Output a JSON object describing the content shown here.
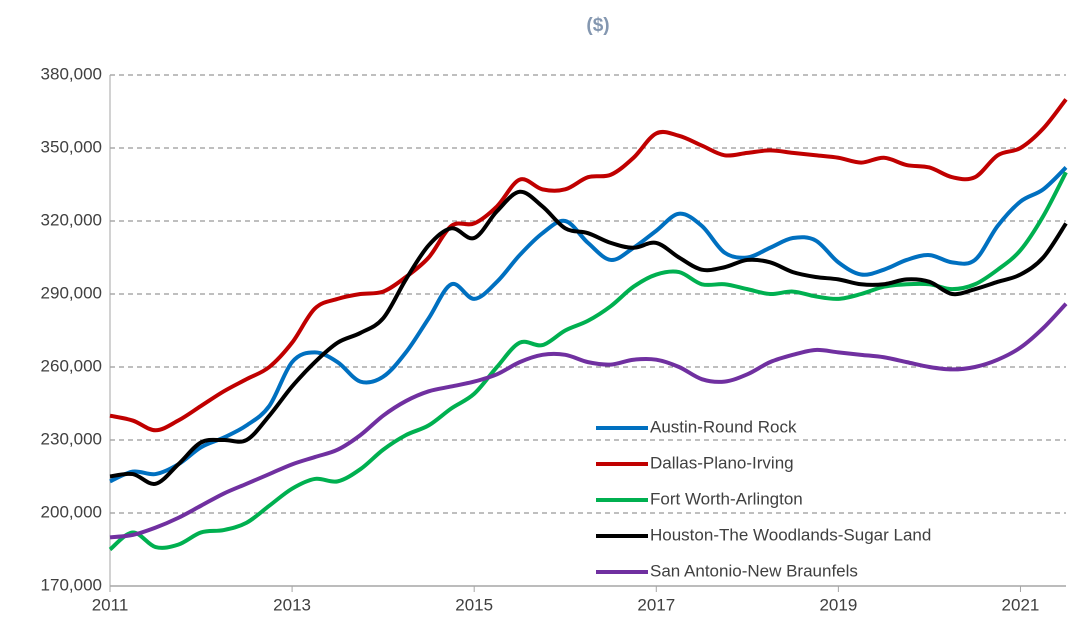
{
  "chart_data": {
    "type": "line",
    "title": "($)",
    "x": [
      2011,
      2011.25,
      2011.5,
      2011.75,
      2012,
      2012.25,
      2012.5,
      2012.75,
      2013,
      2013.25,
      2013.5,
      2013.75,
      2014,
      2014.25,
      2014.5,
      2014.75,
      2015,
      2015.25,
      2015.5,
      2015.75,
      2016,
      2016.25,
      2016.5,
      2016.75,
      2017,
      2017.25,
      2017.5,
      2017.75,
      2018,
      2018.25,
      2018.5,
      2018.75,
      2019,
      2019.25,
      2019.5,
      2019.75,
      2020,
      2020.25,
      2020.5,
      2020.75,
      2021,
      2021.25,
      2021.5
    ],
    "series": [
      {
        "name": "Austin-Round Rock",
        "color": "#0070c0",
        "values": [
          213000,
          217000,
          216000,
          220000,
          227000,
          231000,
          236000,
          244000,
          262000,
          266000,
          262000,
          254000,
          256000,
          266000,
          280000,
          294000,
          288000,
          295000,
          306000,
          315000,
          320000,
          311000,
          304000,
          309000,
          316000,
          323000,
          318000,
          307000,
          305000,
          309000,
          313000,
          312000,
          303000,
          298000,
          300000,
          304000,
          306000,
          303000,
          304000,
          318000,
          328000,
          333000,
          342000
        ]
      },
      {
        "name": "Dallas-Plano-Irving",
        "color": "#c00000",
        "values": [
          240000,
          238000,
          234000,
          238000,
          244000,
          250000,
          255000,
          260000,
          270000,
          284000,
          288000,
          290000,
          291000,
          297000,
          305000,
          318000,
          319000,
          326000,
          337000,
          333000,
          333000,
          338000,
          339000,
          346000,
          356000,
          355000,
          351000,
          347000,
          348000,
          349000,
          348000,
          347000,
          346000,
          344000,
          346000,
          343000,
          342000,
          338000,
          338000,
          347000,
          350000,
          358000,
          370000
        ]
      },
      {
        "name": "Fort Worth-Arlington",
        "color": "#00b050",
        "values": [
          185000,
          192000,
          186000,
          187000,
          192000,
          193000,
          196000,
          203000,
          210000,
          214000,
          213000,
          218000,
          226000,
          232000,
          236000,
          243000,
          249000,
          260000,
          270000,
          269000,
          275000,
          279000,
          285000,
          293000,
          298000,
          299000,
          294000,
          294000,
          292000,
          290000,
          291000,
          289000,
          288000,
          290000,
          293000,
          294000,
          294000,
          292000,
          294000,
          300000,
          308000,
          322000,
          340000
        ]
      },
      {
        "name": "Houston-The Woodlands-Sugar Land",
        "color": "#000000",
        "values": [
          215000,
          216000,
          212000,
          220000,
          229000,
          230000,
          230000,
          240000,
          252000,
          262000,
          270000,
          274000,
          280000,
          296000,
          310000,
          317000,
          313000,
          324000,
          332000,
          326000,
          317000,
          315000,
          311000,
          309000,
          311000,
          305000,
          300000,
          301000,
          304000,
          303000,
          299000,
          297000,
          296000,
          294000,
          294000,
          296000,
          295000,
          290000,
          292000,
          295000,
          298000,
          305000,
          319000
        ]
      },
      {
        "name": "San Antonio-New Braunfels",
        "color": "#7030a0",
        "values": [
          190000,
          191000,
          194000,
          198000,
          203000,
          208000,
          212000,
          216000,
          220000,
          223000,
          226000,
          232000,
          240000,
          246000,
          250000,
          252000,
          254000,
          257000,
          262000,
          265000,
          265000,
          262000,
          261000,
          263000,
          263000,
          260000,
          255000,
          254000,
          257000,
          262000,
          265000,
          267000,
          266000,
          265000,
          264000,
          262000,
          260000,
          259000,
          260000,
          263000,
          268000,
          276000,
          286000
        ]
      }
    ],
    "xlim": [
      2011,
      2021.5
    ],
    "xticks": [
      2011,
      2013,
      2015,
      2017,
      2019,
      2021
    ],
    "ylim": [
      170000,
      380000
    ],
    "yticks": [
      {
        "value": 170000,
        "label": "170,000"
      },
      {
        "value": 200000,
        "label": "200,000"
      },
      {
        "value": 230000,
        "label": "230,000"
      },
      {
        "value": 260000,
        "label": "260,000"
      },
      {
        "value": 290000,
        "label": "290,000"
      },
      {
        "value": 320000,
        "label": "320,000"
      },
      {
        "value": 350000,
        "label": "350,000"
      },
      {
        "value": 380000,
        "label": "380,000"
      }
    ],
    "grid": true,
    "legend": "lower right"
  }
}
